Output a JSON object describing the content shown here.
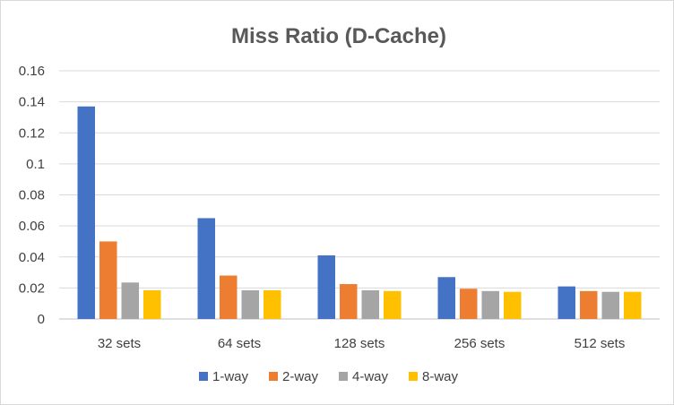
{
  "chart_data": {
    "type": "bar",
    "title": "Miss Ratio (D-Cache)",
    "xlabel": "",
    "ylabel": "",
    "categories": [
      "32 sets",
      "64 sets",
      "128 sets",
      "256 sets",
      "512 sets"
    ],
    "series": [
      {
        "name": "1-way",
        "color": "#4472C4",
        "values": [
          0.137,
          0.065,
          0.041,
          0.027,
          0.021
        ]
      },
      {
        "name": "2-way",
        "color": "#ED7D31",
        "values": [
          0.05,
          0.028,
          0.0225,
          0.0195,
          0.018
        ]
      },
      {
        "name": "4-way",
        "color": "#A5A5A5",
        "values": [
          0.0235,
          0.0185,
          0.0185,
          0.018,
          0.0175
        ]
      },
      {
        "name": "8-way",
        "color": "#FFC000",
        "values": [
          0.0185,
          0.0185,
          0.018,
          0.0175,
          0.0175
        ]
      }
    ],
    "ylim": [
      0,
      0.16
    ],
    "yticks": [
      "0",
      "0.02",
      "0.04",
      "0.06",
      "0.08",
      "0.1",
      "0.12",
      "0.14",
      "0.16"
    ],
    "grid": true,
    "legend": "bottom",
    "colors": {
      "grid": "#d9d9d9",
      "axis": "#bfbfbf"
    }
  }
}
